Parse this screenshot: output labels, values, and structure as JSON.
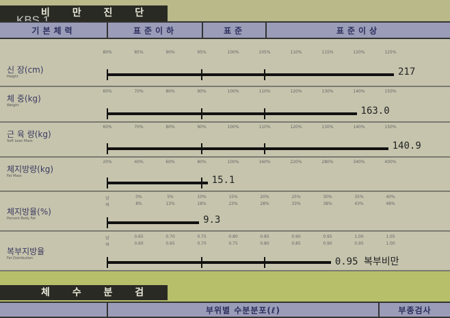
{
  "section1_title": "비 만 진 단",
  "broadcaster_logo": "KBS 1",
  "header": {
    "col0": "기본체력",
    "col1": "표준이하",
    "col2": "표준",
    "col3": "표준이상"
  },
  "rows": [
    {
      "label": "신      장(cm)",
      "sub": "Height",
      "scale": [
        "80%",
        "85%",
        "90%",
        "95%",
        "100%",
        "105%",
        "110%",
        "115%",
        "120%",
        "125%"
      ],
      "value": "217",
      "bar_percent": 100
    },
    {
      "label": "체      중(kg)",
      "sub": "Weight",
      "scale": [
        "60%",
        "70%",
        "80%",
        "90%",
        "100%",
        "110%",
        "120%",
        "130%",
        "140%",
        "150%"
      ],
      "value": "163.0",
      "bar_percent": 87
    },
    {
      "label": "근  육  량(kg)",
      "sub": "Soft Lean Mass",
      "scale": [
        "60%",
        "70%",
        "80%",
        "90%",
        "100%",
        "110%",
        "120%",
        "130%",
        "140%",
        "150%"
      ],
      "value": "140.9",
      "bar_percent": 98
    },
    {
      "label": "체지방량(kg)",
      "sub": "Fat Mass",
      "scale": [
        "20%",
        "40%",
        "60%",
        "80%",
        "100%",
        "160%",
        "220%",
        "280%",
        "340%",
        "400%"
      ],
      "value": "15.1",
      "bar_percent": 35
    },
    {
      "label": "체지방율(%)",
      "sub": "Percent Body Fat",
      "scale_m": [
        "남",
        "0%",
        "5%",
        "10%",
        "15%",
        "20%",
        "25%",
        "30%",
        "35%",
        "40%"
      ],
      "scale_f": [
        "여",
        "8%",
        "13%",
        "18%",
        "23%",
        "28%",
        "33%",
        "38%",
        "43%",
        "48%"
      ],
      "value": "9.3",
      "bar_percent": 32
    },
    {
      "label": "복부지방율",
      "sub": "Fat Distribution",
      "scale_m": [
        "남",
        "0.65",
        "0.70",
        "0.75",
        "0.80",
        "0.85",
        "0.90",
        "0.95",
        "1.00",
        "1.05"
      ],
      "scale_f": [
        "여",
        "0.60",
        "0.65",
        "0.70",
        "0.75",
        "0.80",
        "0.85",
        "0.90",
        "0.95",
        "1.00"
      ],
      "value": "0.95 복부비만",
      "bar_percent": 78
    }
  ],
  "section2_title": "체 수 분 검 사",
  "section2_header": {
    "col1": "부위별 수분분포(ℓ)",
    "col2": "부종검사"
  }
}
